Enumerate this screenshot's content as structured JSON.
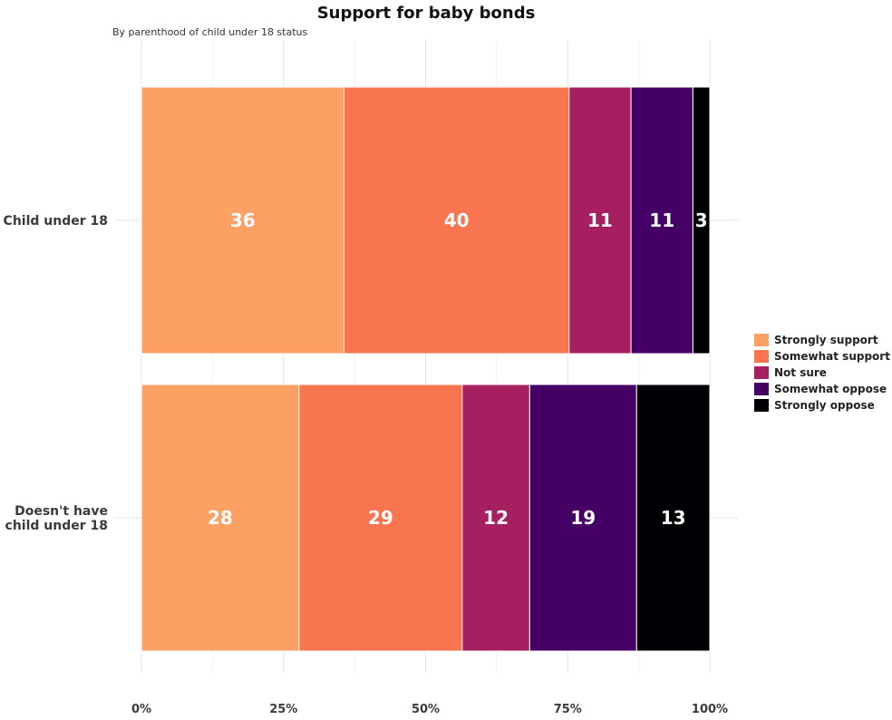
{
  "chart_data": {
    "type": "bar",
    "orientation": "horizontal",
    "stacked": "percent",
    "title": "Support for baby bonds",
    "subtitle": "By parenthood of child under 18 status",
    "categories": [
      [
        "Child under 18"
      ],
      [
        "Doesn't have",
        "child under 18"
      ]
    ],
    "series": [
      {
        "name": "Strongly support",
        "color": "#FCA063",
        "values": [
          36,
          28
        ]
      },
      {
        "name": "Somewhat support",
        "color": "#F8754F",
        "values": [
          40,
          29
        ]
      },
      {
        "name": "Not sure",
        "color": "#A51F61",
        "values": [
          11,
          12
        ]
      },
      {
        "name": "Somewhat oppose",
        "color": "#440064",
        "values": [
          11,
          19
        ]
      },
      {
        "name": "Strongly oppose",
        "color": "#000004",
        "values": [
          3,
          13
        ]
      }
    ],
    "xlim": [
      0,
      100
    ],
    "xticks": [
      "0%",
      "25%",
      "50%",
      "75%",
      "100%"
    ],
    "grid": true,
    "legend": "right"
  }
}
